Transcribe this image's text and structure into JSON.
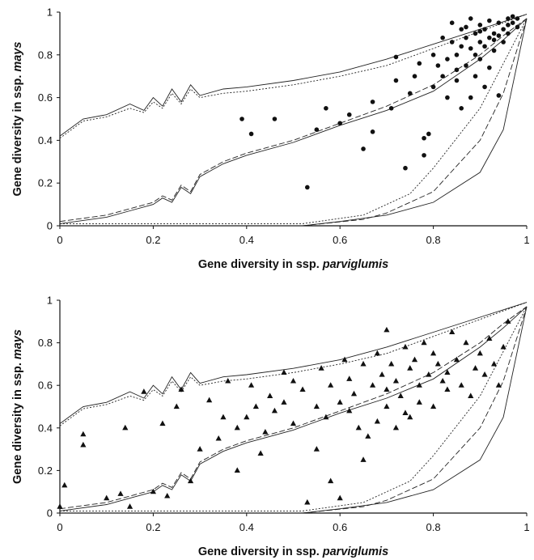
{
  "chart_data": [
    {
      "type": "scatter",
      "xlabel_parts": [
        "Gene diversity in ssp.",
        "parviglumis"
      ],
      "ylabel_parts": [
        "Gene diversity in ssp.",
        "mays"
      ],
      "xlim": [
        0,
        1
      ],
      "ylim": [
        0,
        1
      ],
      "xticks": [
        0,
        0.2,
        0.4,
        0.6,
        0.8,
        1
      ],
      "yticks": [
        0,
        0.2,
        0.4,
        0.6,
        0.8,
        1
      ],
      "marker": "circle",
      "color": "#111111",
      "series": [
        {
          "x": [
            0.39,
            0.41,
            0.46,
            0.53,
            0.55,
            0.57,
            0.6,
            0.62,
            0.65,
            0.67,
            0.67,
            0.71,
            0.72,
            0.72,
            0.74,
            0.75,
            0.76,
            0.78,
            0.78,
            0.79,
            0.8,
            0.8,
            0.81,
            0.82,
            0.83,
            0.84,
            0.84,
            0.85,
            0.85,
            0.86,
            0.86,
            0.87,
            0.87,
            0.88,
            0.88,
            0.89,
            0.89,
            0.9,
            0.9,
            0.9,
            0.91,
            0.91,
            0.92,
            0.92,
            0.93,
            0.93,
            0.94,
            0.94,
            0.95,
            0.95,
            0.96,
            0.96,
            0.97,
            0.97,
            0.98,
            0.98,
            0.82,
            0.86,
            0.88,
            0.92,
            0.89,
            0.93,
            0.91,
            0.77,
            0.83,
            0.87,
            0.9,
            0.94,
            0.96,
            0.85
          ],
          "values": [
            0.5,
            0.43,
            0.5,
            0.18,
            0.45,
            0.55,
            0.48,
            0.52,
            0.36,
            0.44,
            0.58,
            0.55,
            0.79,
            0.68,
            0.27,
            0.62,
            0.7,
            0.33,
            0.41,
            0.43,
            0.65,
            0.8,
            0.75,
            0.7,
            0.6,
            0.86,
            0.95,
            0.68,
            0.8,
            0.55,
            0.92,
            0.75,
            0.88,
            0.6,
            0.83,
            0.9,
            0.7,
            0.94,
            0.86,
            0.78,
            0.92,
            0.65,
            0.88,
            0.96,
            0.9,
            0.82,
            0.95,
            0.61,
            0.92,
            0.86,
            0.97,
            0.9,
            0.95,
            0.98,
            0.93,
            0.97,
            0.88,
            0.84,
            0.97,
            0.74,
            0.8,
            0.87,
            0.84,
            0.76,
            0.78,
            0.93,
            0.91,
            0.89,
            0.94,
            0.73
          ]
        }
      ],
      "lines": [
        {
          "style": "solid",
          "x": [
            0,
            0.05,
            0.1,
            0.15,
            0.18,
            0.2,
            0.22,
            0.24,
            0.26,
            0.28,
            0.3,
            0.35,
            0.4,
            0.5,
            0.6,
            0.7,
            0.8,
            0.9,
            1
          ],
          "values": [
            0.42,
            0.5,
            0.52,
            0.57,
            0.54,
            0.6,
            0.56,
            0.64,
            0.58,
            0.66,
            0.61,
            0.64,
            0.65,
            0.68,
            0.72,
            0.78,
            0.85,
            0.92,
            0.99
          ]
        },
        {
          "style": "dotted",
          "x": [
            0,
            0.05,
            0.1,
            0.15,
            0.18,
            0.2,
            0.22,
            0.24,
            0.26,
            0.28,
            0.3,
            0.35,
            0.4,
            0.5,
            0.6,
            0.7,
            0.8,
            0.9,
            1
          ],
          "values": [
            0.41,
            0.49,
            0.51,
            0.55,
            0.53,
            0.58,
            0.55,
            0.62,
            0.57,
            0.64,
            0.6,
            0.62,
            0.63,
            0.66,
            0.7,
            0.75,
            0.83,
            0.91,
            0.99
          ]
        },
        {
          "style": "solid",
          "x": [
            0,
            0.1,
            0.15,
            0.2,
            0.22,
            0.24,
            0.26,
            0.28,
            0.3,
            0.35,
            0.4,
            0.5,
            0.6,
            0.7,
            0.8,
            0.9,
            0.95,
            1
          ],
          "values": [
            0.01,
            0.04,
            0.07,
            0.1,
            0.13,
            0.11,
            0.18,
            0.15,
            0.23,
            0.29,
            0.33,
            0.39,
            0.47,
            0.54,
            0.63,
            0.78,
            0.87,
            0.97
          ]
        },
        {
          "style": "dashed",
          "x": [
            0,
            0.1,
            0.15,
            0.2,
            0.22,
            0.24,
            0.26,
            0.28,
            0.3,
            0.35,
            0.4,
            0.5,
            0.6,
            0.7,
            0.8,
            0.9,
            0.95,
            1
          ],
          "values": [
            0.02,
            0.05,
            0.08,
            0.11,
            0.14,
            0.12,
            0.19,
            0.16,
            0.24,
            0.3,
            0.34,
            0.4,
            0.48,
            0.56,
            0.66,
            0.8,
            0.89,
            0.97
          ]
        },
        {
          "style": "solid",
          "x": [
            0,
            0.52,
            0.6,
            0.7,
            0.8,
            0.9,
            0.95,
            1
          ],
          "values": [
            0,
            0,
            0.02,
            0.05,
            0.11,
            0.25,
            0.45,
            0.97
          ]
        },
        {
          "style": "dashed",
          "x": [
            0,
            0.52,
            0.65,
            0.7,
            0.8,
            0.9,
            0.95,
            1
          ],
          "values": [
            0,
            0,
            0.03,
            0.06,
            0.16,
            0.4,
            0.62,
            0.97
          ]
        },
        {
          "style": "dotted",
          "x": [
            0,
            0.52,
            0.65,
            0.75,
            0.8,
            0.9,
            1
          ],
          "values": [
            0.01,
            0.01,
            0.05,
            0.15,
            0.27,
            0.55,
            0.97
          ]
        }
      ]
    },
    {
      "type": "scatter",
      "xlabel_parts": [
        "Gene diversity in ssp.",
        "parviglumis"
      ],
      "ylabel_parts": [
        "Gene diversity in ssp.",
        "mays"
      ],
      "xlim": [
        0,
        1
      ],
      "ylim": [
        0,
        1
      ],
      "xticks": [
        0,
        0.2,
        0.4,
        0.6,
        0.8,
        1
      ],
      "yticks": [
        0,
        0.2,
        0.4,
        0.6,
        0.8,
        1
      ],
      "marker": "triangle",
      "color": "#111111",
      "series": [
        {
          "x": [
            0,
            0.01,
            0.05,
            0.05,
            0.1,
            0.13,
            0.14,
            0.15,
            0.18,
            0.2,
            0.22,
            0.23,
            0.25,
            0.26,
            0.28,
            0.3,
            0.32,
            0.34,
            0.35,
            0.36,
            0.38,
            0.4,
            0.41,
            0.42,
            0.44,
            0.45,
            0.46,
            0.48,
            0.5,
            0.5,
            0.52,
            0.53,
            0.55,
            0.56,
            0.57,
            0.58,
            0.6,
            0.6,
            0.61,
            0.62,
            0.63,
            0.64,
            0.65,
            0.66,
            0.67,
            0.68,
            0.69,
            0.7,
            0.7,
            0.71,
            0.72,
            0.73,
            0.74,
            0.75,
            0.75,
            0.76,
            0.77,
            0.78,
            0.79,
            0.8,
            0.8,
            0.81,
            0.82,
            0.83,
            0.84,
            0.85,
            0.86,
            0.87,
            0.88,
            0.9,
            0.91,
            0.92,
            0.93,
            0.94,
            0.95,
            0.96,
            0.72,
            0.65,
            0.58,
            0.48,
            0.43,
            0.38,
            0.62,
            0.68,
            0.77,
            0.83,
            0.7,
            0.74,
            0.89,
            0.55
          ],
          "values": [
            0.03,
            0.13,
            0.37,
            0.32,
            0.07,
            0.09,
            0.4,
            0.03,
            0.57,
            0.1,
            0.42,
            0.08,
            0.5,
            0.58,
            0.15,
            0.3,
            0.53,
            0.35,
            0.45,
            0.62,
            0.4,
            0.45,
            0.6,
            0.5,
            0.38,
            0.55,
            0.48,
            0.52,
            0.42,
            0.62,
            0.58,
            0.05,
            0.5,
            0.68,
            0.45,
            0.6,
            0.52,
            0.07,
            0.72,
            0.63,
            0.56,
            0.4,
            0.7,
            0.36,
            0.6,
            0.75,
            0.65,
            0.86,
            0.5,
            0.7,
            0.62,
            0.55,
            0.78,
            0.45,
            0.68,
            0.72,
            0.6,
            0.8,
            0.65,
            0.75,
            0.5,
            0.7,
            0.62,
            0.58,
            0.85,
            0.72,
            0.6,
            0.8,
            0.55,
            0.75,
            0.65,
            0.82,
            0.7,
            0.6,
            0.78,
            0.9,
            0.4,
            0.25,
            0.15,
            0.66,
            0.28,
            0.2,
            0.48,
            0.43,
            0.52,
            0.66,
            0.58,
            0.47,
            0.68,
            0.3
          ]
        }
      ],
      "lines": [
        {
          "style": "solid",
          "x": [
            0,
            0.05,
            0.1,
            0.15,
            0.18,
            0.2,
            0.22,
            0.24,
            0.26,
            0.28,
            0.3,
            0.35,
            0.4,
            0.5,
            0.6,
            0.7,
            0.8,
            0.9,
            1
          ],
          "values": [
            0.42,
            0.5,
            0.52,
            0.57,
            0.54,
            0.6,
            0.56,
            0.64,
            0.58,
            0.66,
            0.61,
            0.64,
            0.65,
            0.68,
            0.72,
            0.78,
            0.85,
            0.92,
            0.99
          ]
        },
        {
          "style": "dotted",
          "x": [
            0,
            0.05,
            0.1,
            0.15,
            0.18,
            0.2,
            0.22,
            0.24,
            0.26,
            0.28,
            0.3,
            0.35,
            0.4,
            0.5,
            0.6,
            0.7,
            0.8,
            0.9,
            1
          ],
          "values": [
            0.41,
            0.49,
            0.51,
            0.55,
            0.53,
            0.58,
            0.55,
            0.62,
            0.57,
            0.64,
            0.6,
            0.62,
            0.63,
            0.66,
            0.7,
            0.75,
            0.83,
            0.91,
            0.99
          ]
        },
        {
          "style": "solid",
          "x": [
            0,
            0.1,
            0.15,
            0.2,
            0.22,
            0.24,
            0.26,
            0.28,
            0.3,
            0.35,
            0.4,
            0.5,
            0.6,
            0.7,
            0.8,
            0.9,
            0.95,
            1
          ],
          "values": [
            0.01,
            0.04,
            0.07,
            0.1,
            0.13,
            0.11,
            0.18,
            0.15,
            0.23,
            0.29,
            0.33,
            0.39,
            0.47,
            0.54,
            0.63,
            0.78,
            0.87,
            0.97
          ]
        },
        {
          "style": "dashed",
          "x": [
            0,
            0.1,
            0.15,
            0.2,
            0.22,
            0.24,
            0.26,
            0.28,
            0.3,
            0.35,
            0.4,
            0.5,
            0.6,
            0.7,
            0.8,
            0.9,
            0.95,
            1
          ],
          "values": [
            0.02,
            0.05,
            0.08,
            0.11,
            0.14,
            0.12,
            0.19,
            0.16,
            0.24,
            0.3,
            0.34,
            0.4,
            0.48,
            0.56,
            0.66,
            0.8,
            0.89,
            0.97
          ]
        },
        {
          "style": "solid",
          "x": [
            0,
            0.52,
            0.6,
            0.7,
            0.8,
            0.9,
            0.95,
            1
          ],
          "values": [
            0,
            0,
            0.02,
            0.05,
            0.11,
            0.25,
            0.45,
            0.97
          ]
        },
        {
          "style": "dashed",
          "x": [
            0,
            0.52,
            0.65,
            0.7,
            0.8,
            0.9,
            0.95,
            1
          ],
          "values": [
            0,
            0,
            0.03,
            0.06,
            0.16,
            0.4,
            0.62,
            0.97
          ]
        },
        {
          "style": "dotted",
          "x": [
            0,
            0.52,
            0.65,
            0.75,
            0.8,
            0.9,
            1
          ],
          "values": [
            0.01,
            0.01,
            0.05,
            0.15,
            0.27,
            0.55,
            0.97
          ]
        }
      ]
    }
  ]
}
